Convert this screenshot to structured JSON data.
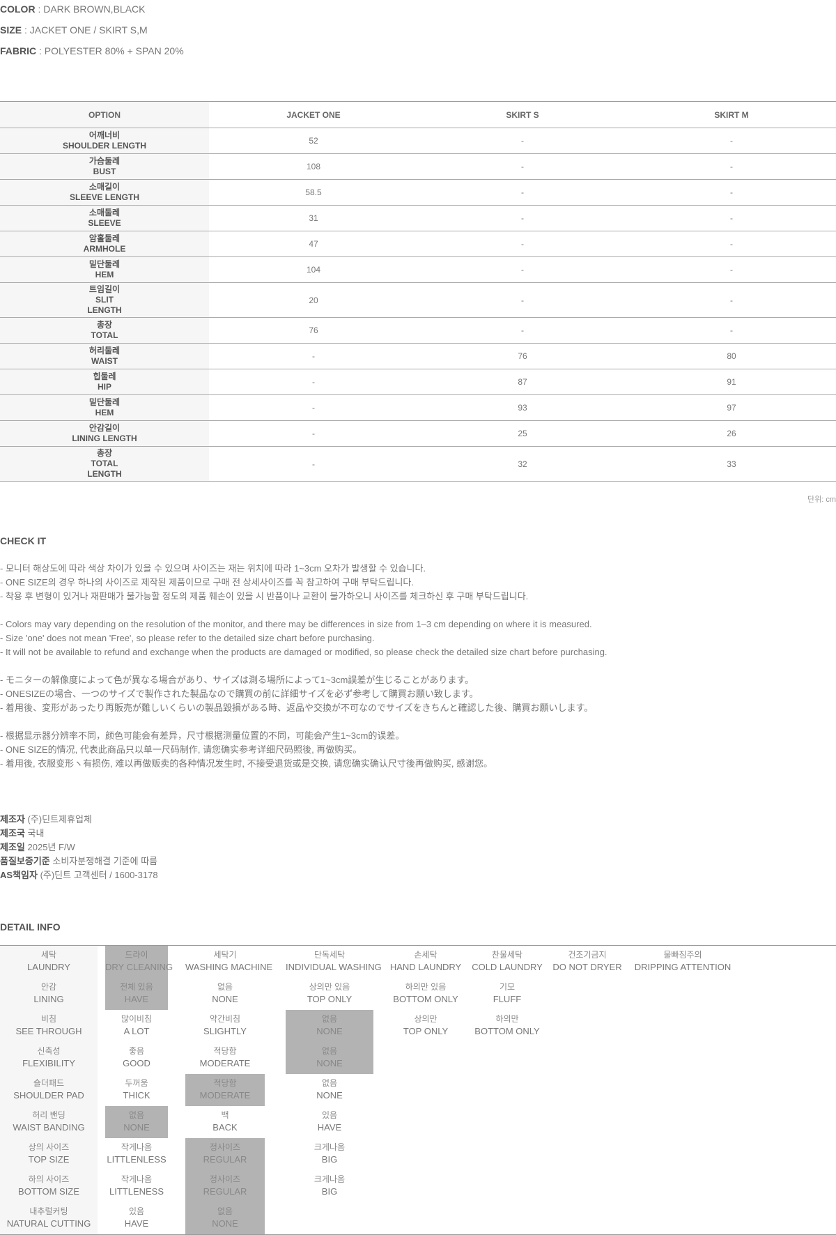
{
  "specs": [
    {
      "label": "COLOR",
      "value": " : DARK BROWN,BLACK"
    },
    {
      "label": "SIZE",
      "value": " : JACKET ONE / SKIRT S,M"
    },
    {
      "label": "FABRIC",
      "value": " : POLYESTER 80% + SPAN 20%"
    }
  ],
  "size_table": {
    "headers": [
      "OPTION",
      "JACKET ONE",
      "SKIRT S",
      "SKIRT M"
    ],
    "rows": [
      {
        "label": "어깨너비\nSHOULDER LENGTH",
        "values": [
          "52",
          "-",
          "-"
        ]
      },
      {
        "label": "가슴둘레\nBUST",
        "values": [
          "108",
          "-",
          "-"
        ]
      },
      {
        "label": "소매길이\nSLEEVE LENGTH",
        "values": [
          "58.5",
          "-",
          "-"
        ]
      },
      {
        "label": "소매둘레\nSLEEVE",
        "values": [
          "31",
          "-",
          "-"
        ]
      },
      {
        "label": "암홀둘레\nARMHOLE",
        "values": [
          "47",
          "-",
          "-"
        ]
      },
      {
        "label": "밑단둘레\nHEM",
        "values": [
          "104",
          "-",
          "-"
        ]
      },
      {
        "label": "트임길이\nSLIT\nLENGTH",
        "values": [
          "20",
          "-",
          "-"
        ]
      },
      {
        "label": "총장\nTOTAL",
        "values": [
          "76",
          "-",
          "-"
        ]
      },
      {
        "label": "허리둘레\nWAIST",
        "values": [
          "-",
          "76",
          "80"
        ]
      },
      {
        "label": "힙둘레\nHIP",
        "values": [
          "-",
          "87",
          "91"
        ]
      },
      {
        "label": "밑단둘레\nHEM",
        "values": [
          "-",
          "93",
          "97"
        ]
      },
      {
        "label": "안감길이\nLINING LENGTH",
        "values": [
          "-",
          "25",
          "26"
        ]
      },
      {
        "label": "총장\nTOTAL\nLENGTH",
        "values": [
          "-",
          "32",
          "33"
        ]
      }
    ],
    "unit": "단위: cm"
  },
  "check_it": {
    "title": "CHECK IT",
    "groups": [
      [
        "- 모니터 해상도에 따라 색상 차이가 있을 수 있으며 사이즈는 재는 위치에 따라 1~3cm 오차가 발생할 수 있습니다.",
        "- ONE SIZE의 경우 하나의 사이즈로 제작된 제품이므로 구매 전 상세사이즈를 꼭 참고하여 구매 부탁드립니다.",
        "- 착용 후 변형이 있거나 재판매가 불가능할 정도의 제품 훼손이 있을 시 반품이나 교환이 불가하오니 사이즈를 체크하신 후 구매 부탁드립니다."
      ],
      [
        "- Colors may vary depending on the resolution of the monitor, and there may be differences in size from 1–3 cm depending on where it is measured.",
        "- Size 'one' does not mean 'Free', so please refer to the detailed size chart before purchasing.",
        "- It will not be available to refund and exchange when the products are damaged or modified, so please check the detailed size chart before purchasing."
      ],
      [
        "- モニターの解像度によって色が異なる場合があり、サイズは測る場所によって1~3cm誤差が生じることがあります。",
        "- ONESIZEの場合、一つのサイズで製作された製品なので購買の前に詳細サイズを必ず参考して購買お願い致します。",
        "- 着用後、変形があったり再販売が難しいくらいの製品毀損がある時、返品や交換が不可なのでサイズをきちんと確認した後、購買お願いします。"
      ],
      [
        "- 根据显示器分辨率不同，颜色可能会有差异，尺寸根据测量位置的不同，可能会产生1~3cm的误差。",
        "- ONE SIZE的情况, 代表此商品只以单一尺码制作, 请您确实参考详细尺码照後, 再做购买。",
        "- 着用後, 衣服变形ヽ有损伤, 难以再做贩卖的各种情况发生时, 不接受退货或是交换, 请您确实确认尺寸後再做购买, 感谢您。"
      ]
    ]
  },
  "maker": [
    {
      "label": "제조자",
      "value": " (주)딘트제휴업체"
    },
    {
      "label": "제조국",
      "value": " 국내"
    },
    {
      "label": "제조일",
      "value": " 2025년 F/W"
    },
    {
      "label": "품질보증기준",
      "value": " 소비자분쟁해결 기준에 따름"
    },
    {
      "label": "AS책임자",
      "value": " (주)딘트 고객센터 / 1600-3178"
    }
  ],
  "detail_info": {
    "title": "DETAIL INFO",
    "highlight_color": "#b3b3b3",
    "rows": [
      {
        "label": {
          "ko": "세탁",
          "en": "LAUNDRY"
        },
        "options": [
          {
            "ko": "드라이",
            "en": "DRY CLEANING",
            "selected": true
          },
          {
            "ko": "세탁기",
            "en": "WASHING MACHINE",
            "selected": false
          },
          {
            "ko": "단독세탁",
            "en": "INDIVIDUAL WASHING",
            "selected": false
          },
          {
            "ko": "손세탁",
            "en": "HAND LAUNDRY",
            "selected": false
          },
          {
            "ko": "찬물세탁",
            "en": "COLD LAUNDRY",
            "selected": false
          },
          {
            "ko": "건조기금지",
            "en": "DO NOT DRYER",
            "selected": false
          },
          {
            "ko": "물빠짐주의",
            "en": "DRIPPING ATTENTION",
            "selected": false
          }
        ]
      },
      {
        "label": {
          "ko": "안감",
          "en": "LINING"
        },
        "options": [
          {
            "ko": "전체 있음",
            "en": "HAVE",
            "selected": true
          },
          {
            "ko": "없음",
            "en": "NONE",
            "selected": false
          },
          {
            "ko": "상의만 있음",
            "en": "TOP ONLY",
            "selected": false
          },
          {
            "ko": "하의만 있음",
            "en": "BOTTOM ONLY",
            "selected": false
          },
          {
            "ko": "기모",
            "en": "FLUFF",
            "selected": false
          }
        ]
      },
      {
        "label": {
          "ko": "비침",
          "en": "SEE THROUGH"
        },
        "options": [
          {
            "ko": "많이비침",
            "en": "A LOT",
            "selected": false
          },
          {
            "ko": "약간비침",
            "en": "SLIGHTLY",
            "selected": false
          },
          {
            "ko": "없음",
            "en": "NONE",
            "selected": true
          },
          {
            "ko": "상의만",
            "en": "TOP ONLY",
            "selected": false
          },
          {
            "ko": "하의만",
            "en": "BOTTOM ONLY",
            "selected": false
          }
        ]
      },
      {
        "label": {
          "ko": "신축성",
          "en": "FLEXIBILITY"
        },
        "options": [
          {
            "ko": "좋음",
            "en": "GOOD",
            "selected": false
          },
          {
            "ko": "적당함",
            "en": "MODERATE",
            "selected": false
          },
          {
            "ko": "없음",
            "en": "NONE",
            "selected": true
          }
        ]
      },
      {
        "label": {
          "ko": "숄더패드",
          "en": "SHOULDER PAD"
        },
        "options": [
          {
            "ko": "두꺼움",
            "en": "THICK",
            "selected": false
          },
          {
            "ko": "적당함",
            "en": "MODERATE",
            "selected": true
          },
          {
            "ko": "없음",
            "en": "NONE",
            "selected": false
          }
        ]
      },
      {
        "label": {
          "ko": "허리 밴딩",
          "en": "WAIST BANDING"
        },
        "options": [
          {
            "ko": "없음",
            "en": "NONE",
            "selected": true
          },
          {
            "ko": "백",
            "en": "BACK",
            "selected": false
          },
          {
            "ko": "있음",
            "en": "HAVE",
            "selected": false
          }
        ]
      },
      {
        "label": {
          "ko": "상의 사이즈",
          "en": "TOP SIZE"
        },
        "options": [
          {
            "ko": "작게나옴",
            "en": "LITTLENLESS",
            "selected": false
          },
          {
            "ko": "정사이즈",
            "en": "REGULAR",
            "selected": true
          },
          {
            "ko": "크게나옴",
            "en": "BIG",
            "selected": false
          }
        ]
      },
      {
        "label": {
          "ko": "하의 사이즈",
          "en": "BOTTOM SIZE"
        },
        "options": [
          {
            "ko": "작게나옴",
            "en": "LITTLENESS",
            "selected": false
          },
          {
            "ko": "정사이즈",
            "en": "REGULAR",
            "selected": true
          },
          {
            "ko": "크게나옴",
            "en": "BIG",
            "selected": false
          }
        ]
      },
      {
        "label": {
          "ko": "내추럴커팅",
          "en": "NATURAL CUTTING"
        },
        "options": [
          {
            "ko": "있음",
            "en": "HAVE",
            "selected": false
          },
          {
            "ko": "없음",
            "en": "NONE",
            "selected": true
          }
        ]
      }
    ]
  }
}
